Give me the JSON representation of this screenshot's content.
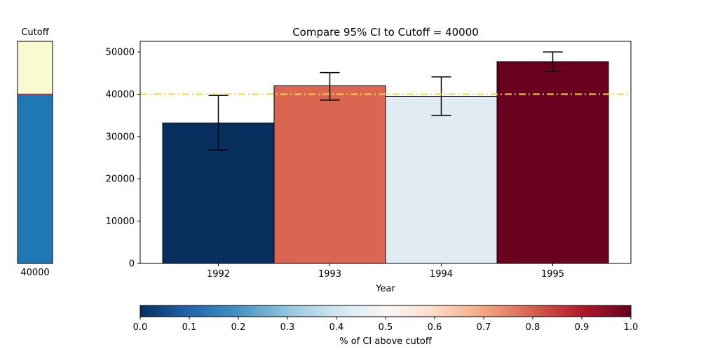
{
  "chart_data": [
    {
      "type": "bar",
      "title": "Compare 95% CI to Cutoff = 40000",
      "xlabel": "Year",
      "ylabel": "",
      "categories": [
        "1992",
        "1993",
        "1994",
        "1995"
      ],
      "values": [
        33200,
        42000,
        39500,
        47700
      ],
      "ci_lower": [
        26800,
        38600,
        35000,
        45400
      ],
      "ci_upper": [
        39700,
        45100,
        44100,
        50000
      ],
      "pct_ci_above_cutoff": [
        0.0,
        0.8,
        0.45,
        1.0
      ],
      "bar_colors": [
        "#08305f",
        "#da6551",
        "#e1ebf3",
        "#69001f"
      ],
      "cutoff": 40000,
      "cutoff_line_color": "#f5d44a",
      "ylim": [
        0,
        52500
      ],
      "yticks": [
        0,
        10000,
        20000,
        30000,
        40000,
        50000
      ],
      "grid": false
    },
    {
      "type": "bar",
      "title": "Cutoff",
      "categories": [
        "40000"
      ],
      "values": [
        40000
      ],
      "ylim": [
        0,
        52500
      ],
      "fill_color": "#1f77b4",
      "remainder_color": "#fafad2",
      "line_color": "#d62728"
    }
  ],
  "colorbar": {
    "label": "% of CI above cutoff",
    "colormap": "RdBu_r",
    "ticks": [
      "0.0",
      "0.1",
      "0.2",
      "0.3",
      "0.4",
      "0.5",
      "0.6",
      "0.7",
      "0.8",
      "0.9",
      "1.0"
    ],
    "stops": [
      "#053061",
      "#2166ac",
      "#4393c3",
      "#92c5de",
      "#d1e5f0",
      "#f7f7f7",
      "#fddbc7",
      "#f4a582",
      "#d6604d",
      "#b2182b",
      "#67001f"
    ]
  }
}
